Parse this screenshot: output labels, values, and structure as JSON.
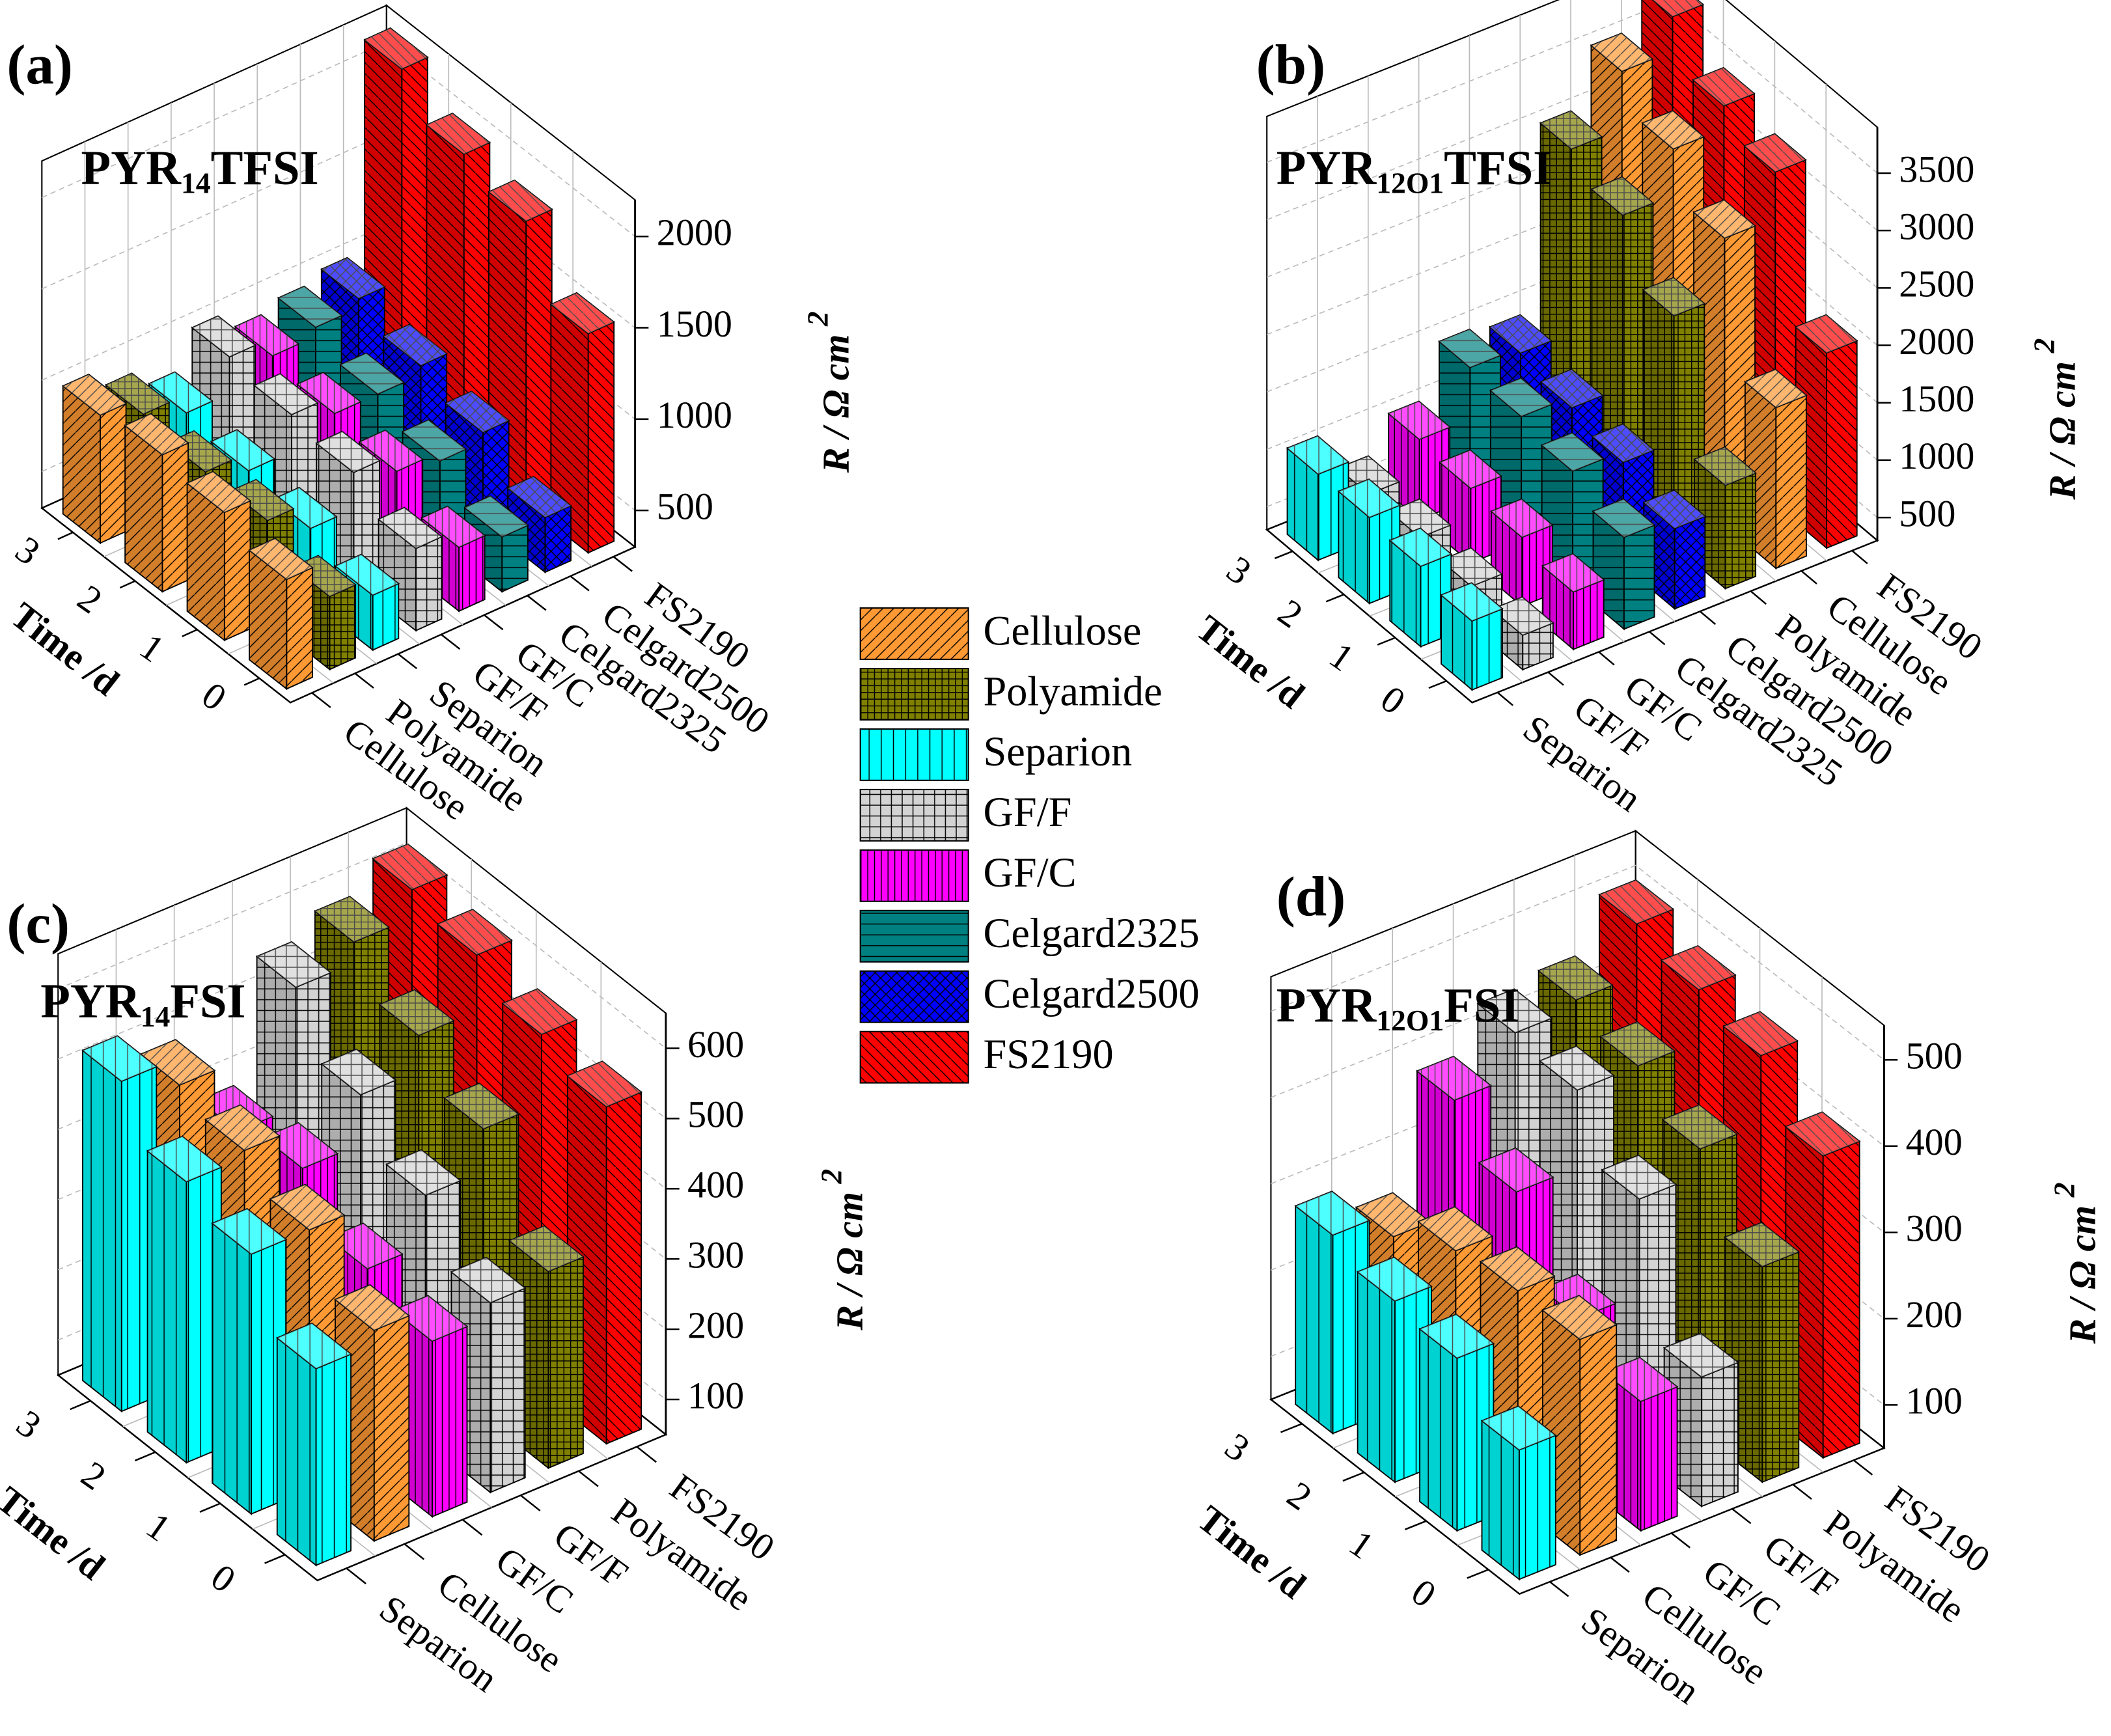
{
  "legend": [
    {
      "name": "Cellulose",
      "color": "#ff9933",
      "hatch": "diag-up"
    },
    {
      "name": "Polyamide",
      "color": "#808000",
      "hatch": "grid-fine"
    },
    {
      "name": "Separion",
      "color": "#00ffff",
      "hatch": "vert"
    },
    {
      "name": "GF/F",
      "color": "#d3d3d3",
      "hatch": "grid"
    },
    {
      "name": "GF/C",
      "color": "#ff00ff",
      "hatch": "vert-fine"
    },
    {
      "name": "Celgard2325",
      "color": "#008080",
      "hatch": "horiz"
    },
    {
      "name": "Celgard2500",
      "color": "#0000ff",
      "hatch": "cross"
    },
    {
      "name": "FS2190",
      "color": "#ff0000",
      "hatch": "diag-down"
    }
  ],
  "chart_data": [
    {
      "type": "bar3d",
      "label": "(a)",
      "title": [
        "PYR",
        "14",
        "TFSI"
      ],
      "xlabel": "Time /d",
      "zlabel": [
        "R / Ω cm",
        "2"
      ],
      "x": [
        0,
        1,
        2,
        3
      ],
      "zlim": [
        300,
        2200
      ],
      "zticks": [
        500,
        1000,
        1500,
        2000
      ],
      "grid": true,
      "series": [
        {
          "name": "Cellulose",
          "color": "#ff9933",
          "hatch": "diag-up",
          "values": [
            900,
            1000,
            1050,
            1000
          ]
        },
        {
          "name": "Polyamide",
          "color": "#808000",
          "hatch": "grid-fine",
          "values": [
            700,
            850,
            850,
            900
          ]
        },
        {
          "name": "Separion",
          "color": "#00ffff",
          "hatch": "vert",
          "values": [
            600,
            700,
            750,
            800
          ]
        },
        {
          "name": "GF/F",
          "color": "#d3d3d3",
          "hatch": "grid",
          "values": [
            750,
            900,
            950,
            1000
          ]
        },
        {
          "name": "GF/C",
          "color": "#ff00ff",
          "hatch": "vert-fine",
          "values": [
            650,
            800,
            850,
            900
          ]
        },
        {
          "name": "Celgard2325",
          "color": "#008080",
          "hatch": "horiz",
          "values": [
            600,
            750,
            850,
            950
          ]
        },
        {
          "name": "Celgard2500",
          "color": "#0000ff",
          "hatch": "cross",
          "values": [
            600,
            800,
            900,
            1000
          ]
        },
        {
          "name": "FS2190",
          "color": "#ff0000",
          "hatch": "diag-down",
          "values": [
            1500,
            1850,
            1950,
            2150
          ]
        }
      ]
    },
    {
      "type": "bar3d",
      "label": "(b)",
      "title": [
        "PYR",
        "12O1",
        "TFSI"
      ],
      "xlabel": "Time /d",
      "zlabel": [
        "R / Ω cm",
        "2"
      ],
      "x": [
        0,
        1,
        2,
        3
      ],
      "zlim": [
        300,
        3900
      ],
      "zticks": [
        500,
        1000,
        1500,
        2000,
        2500,
        3000,
        3500
      ],
      "grid": true,
      "series": [
        {
          "name": "Separion",
          "color": "#00ffff",
          "hatch": "vert",
          "values": [
            900,
            1000,
            1050,
            1050
          ]
        },
        {
          "name": "GF/F",
          "color": "#d3d3d3",
          "hatch": "grid",
          "values": [
            600,
            650,
            700,
            700
          ]
        },
        {
          "name": "GF/C",
          "color": "#ff00ff",
          "hatch": "vert-fine",
          "values": [
            800,
            900,
            950,
            1000
          ]
        },
        {
          "name": "Celgard2325",
          "color": "#008080",
          "hatch": "horiz",
          "values": [
            1100,
            1300,
            1400,
            1450
          ]
        },
        {
          "name": "Celgard2500",
          "color": "#0000ff",
          "hatch": "cross",
          "values": [
            1000,
            1200,
            1300,
            1400
          ]
        },
        {
          "name": "Polyamide",
          "color": "#808000",
          "hatch": "grid-fine",
          "values": [
            1200,
            2300,
            2800,
            3000
          ]
        },
        {
          "name": "Cellulose",
          "color": "#ff9933",
          "hatch": "diag-up",
          "values": [
            1700,
            2800,
            3200,
            3500
          ]
        },
        {
          "name": "FS2190",
          "color": "#ff0000",
          "hatch": "diag-down",
          "values": [
            2000,
            3200,
            3400,
            3800
          ]
        }
      ]
    },
    {
      "type": "bar3d",
      "label": "(c)",
      "title": [
        "PYR",
        "14",
        "FSI"
      ],
      "xlabel": "Time /d",
      "zlabel": [
        "R / Ω cm",
        "2"
      ],
      "x": [
        0,
        1,
        2,
        3
      ],
      "zlim": [
        50,
        650
      ],
      "zticks": [
        100,
        200,
        300,
        400,
        500,
        600
      ],
      "grid": true,
      "series": [
        {
          "name": "Separion",
          "color": "#00ffff",
          "hatch": "vert",
          "values": [
            330,
            420,
            450,
            520
          ]
        },
        {
          "name": "Cellulose",
          "color": "#ff9933",
          "hatch": "diag-up",
          "values": [
            350,
            420,
            460,
            480
          ]
        },
        {
          "name": "GF/C",
          "color": "#ff00ff",
          "hatch": "vert-fine",
          "values": [
            300,
            330,
            400,
            380
          ]
        },
        {
          "name": "GF/F",
          "color": "#d3d3d3",
          "hatch": "grid",
          "values": [
            320,
            400,
            470,
            550
          ]
        },
        {
          "name": "Polyamide",
          "color": "#808000",
          "hatch": "grid-fine",
          "values": [
            330,
            460,
            520,
            580
          ]
        },
        {
          "name": "FS2190",
          "color": "#ff0000",
          "hatch": "diag-down",
          "values": [
            530,
            560,
            600,
            620
          ]
        }
      ]
    },
    {
      "type": "bar3d",
      "label": "(d)",
      "title": [
        "PYR",
        "12O1",
        "FSI"
      ],
      "xlabel": "Time /d",
      "zlabel": [
        "R / Ω cm",
        "2"
      ],
      "x": [
        0,
        1,
        2,
        3
      ],
      "zlim": [
        50,
        540
      ],
      "zticks": [
        100,
        200,
        300,
        400,
        500
      ],
      "grid": true,
      "series": [
        {
          "name": "Separion",
          "color": "#00ffff",
          "hatch": "vert",
          "values": [
            200,
            250,
            260,
            280
          ]
        },
        {
          "name": "Cellulose",
          "color": "#ff9933",
          "hatch": "diag-up",
          "values": [
            300,
            300,
            290,
            250
          ]
        },
        {
          "name": "GF/C",
          "color": "#ff00ff",
          "hatch": "vert-fine",
          "values": [
            200,
            240,
            330,
            380
          ]
        },
        {
          "name": "GF/F",
          "color": "#d3d3d3",
          "hatch": "grid",
          "values": [
            200,
            350,
            420,
            430
          ]
        },
        {
          "name": "Polyamide",
          "color": "#808000",
          "hatch": "grid-fine",
          "values": [
            300,
            380,
            420,
            440
          ]
        },
        {
          "name": "FS2190",
          "color": "#ff0000",
          "hatch": "diag-down",
          "values": [
            400,
            460,
            480,
            500
          ]
        }
      ]
    }
  ]
}
